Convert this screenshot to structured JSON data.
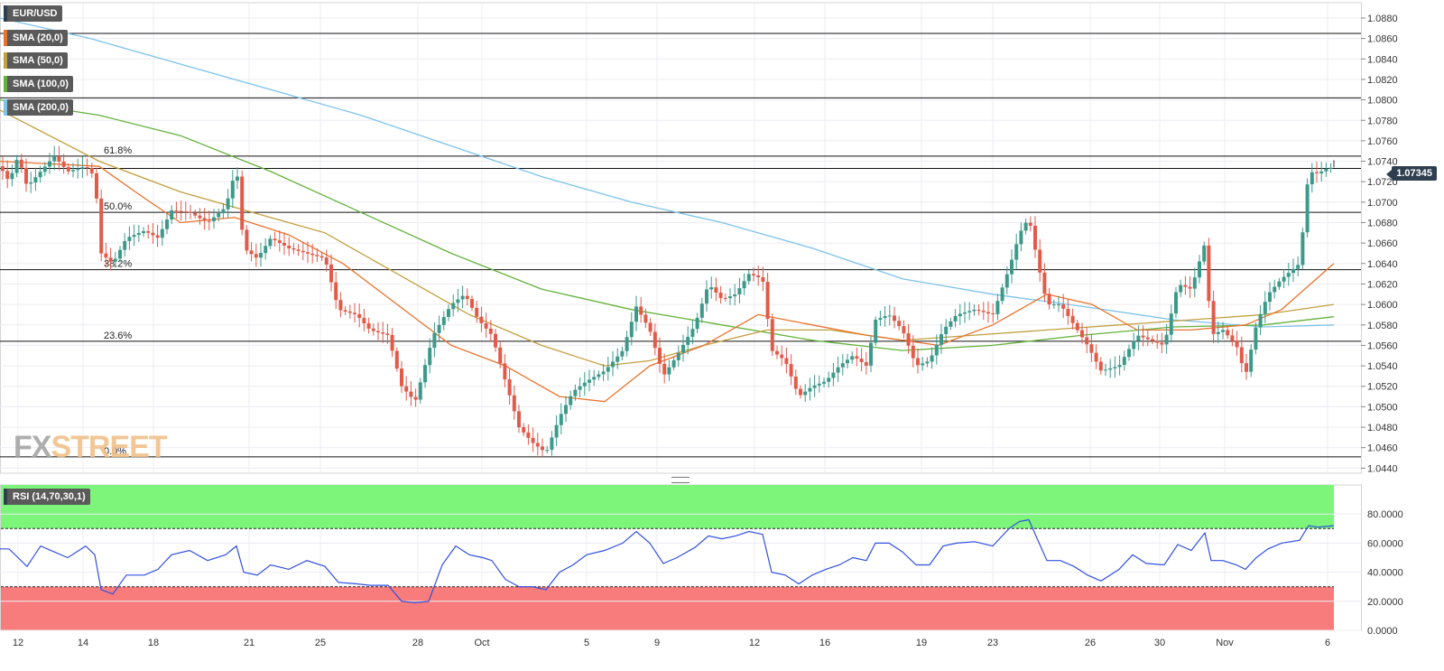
{
  "instrument": "EUR/USD",
  "indicators": [
    {
      "label": "SMA (20,0)",
      "color": "#e8732c"
    },
    {
      "label": "SMA (50,0)",
      "color": "#c2a040"
    },
    {
      "label": "SMA (100,0)",
      "color": "#63b23a"
    },
    {
      "label": "SMA (200,0)",
      "color": "#7cc3ea"
    }
  ],
  "rsi_label": "RSI (14,70,30,1)",
  "current_price": "1.07345",
  "watermark": {
    "fx": "FX",
    "street": "STREET"
  },
  "chart_data": [
    {
      "type": "candlestick",
      "title": "EUR/USD",
      "ylim": [
        1.0435,
        1.0895
      ],
      "y_ticks": [
        "1.0880",
        "1.0860",
        "1.0840",
        "1.0820",
        "1.0800",
        "1.0780",
        "1.0760",
        "1.0740",
        "1.0720",
        "1.0700",
        "1.0680",
        "1.0660",
        "1.0640",
        "1.0620",
        "1.0600",
        "1.0580",
        "1.0560",
        "1.0540",
        "1.0520",
        "1.0500",
        "1.0480",
        "1.0460",
        "1.0440"
      ],
      "x_tick_labels": [
        "12",
        "14",
        "18",
        "21",
        "25",
        "28",
        "Oct",
        "5",
        "9",
        "12",
        "16",
        "19",
        "23",
        "26",
        "30",
        "Nov",
        "6"
      ],
      "horizontal_levels": [
        {
          "label": "",
          "value": 1.0865
        },
        {
          "label": "",
          "value": 1.0802
        },
        {
          "label": "61.8%",
          "value": 1.0745
        },
        {
          "label": "",
          "value": 1.0733
        },
        {
          "label": "50.0%",
          "value": 1.069
        },
        {
          "label": "38.2%",
          "value": 1.0634
        },
        {
          "label": "23.6%",
          "value": 1.0564
        },
        {
          "label": "0.0%",
          "value": 1.0451
        }
      ],
      "price_path": [
        [
          0,
          1.0735
        ],
        [
          10,
          1.072
        ],
        [
          20,
          1.0745
        ],
        [
          30,
          1.0715
        ],
        [
          45,
          1.073
        ],
        [
          60,
          1.0745
        ],
        [
          75,
          1.073
        ],
        [
          95,
          1.0735
        ],
        [
          105,
          1.0725
        ],
        [
          112,
          1.065
        ],
        [
          125,
          1.064
        ],
        [
          140,
          1.0665
        ],
        [
          160,
          1.0672
        ],
        [
          175,
          1.0665
        ],
        [
          190,
          1.0692
        ],
        [
          210,
          1.069
        ],
        [
          230,
          1.068
        ],
        [
          250,
          1.0695
        ],
        [
          262,
          1.0735
        ],
        [
          270,
          1.0655
        ],
        [
          285,
          1.0645
        ],
        [
          300,
          1.0665
        ],
        [
          320,
          1.0655
        ],
        [
          340,
          1.065
        ],
        [
          360,
          1.0645
        ],
        [
          375,
          1.0595
        ],
        [
          395,
          1.059
        ],
        [
          410,
          1.0575
        ],
        [
          430,
          1.057
        ],
        [
          445,
          1.052
        ],
        [
          460,
          1.0505
        ],
        [
          480,
          1.057
        ],
        [
          500,
          1.06
        ],
        [
          515,
          1.061
        ],
        [
          530,
          1.0585
        ],
        [
          545,
          1.057
        ],
        [
          560,
          1.0525
        ],
        [
          575,
          1.048
        ],
        [
          590,
          1.0465
        ],
        [
          605,
          1.0455
        ],
        [
          620,
          1.049
        ],
        [
          635,
          1.0515
        ],
        [
          650,
          1.0525
        ],
        [
          670,
          1.0535
        ],
        [
          690,
          1.0555
        ],
        [
          705,
          1.0598
        ],
        [
          720,
          1.0575
        ],
        [
          735,
          1.053
        ],
        [
          750,
          1.055
        ],
        [
          770,
          1.058
        ],
        [
          785,
          1.062
        ],
        [
          800,
          1.0605
        ],
        [
          815,
          1.061
        ],
        [
          830,
          1.063
        ],
        [
          845,
          1.0625
        ],
        [
          855,
          1.0555
        ],
        [
          870,
          1.0545
        ],
        [
          885,
          1.051
        ],
        [
          900,
          1.052
        ],
        [
          915,
          1.0525
        ],
        [
          930,
          1.054
        ],
        [
          945,
          1.055
        ],
        [
          960,
          1.054
        ],
        [
          970,
          1.0585
        ],
        [
          985,
          1.059
        ],
        [
          1000,
          1.0575
        ],
        [
          1015,
          1.054
        ],
        [
          1030,
          1.0545
        ],
        [
          1045,
          1.0575
        ],
        [
          1060,
          1.059
        ],
        [
          1080,
          1.0595
        ],
        [
          1100,
          1.059
        ],
        [
          1118,
          1.0635
        ],
        [
          1130,
          1.067
        ],
        [
          1140,
          1.0685
        ],
        [
          1150,
          1.064
        ],
        [
          1160,
          1.06
        ],
        [
          1175,
          1.06
        ],
        [
          1190,
          1.058
        ],
        [
          1205,
          1.056
        ],
        [
          1220,
          1.0535
        ],
        [
          1240,
          1.054
        ],
        [
          1260,
          1.057
        ],
        [
          1275,
          1.0565
        ],
        [
          1290,
          1.056
        ],
        [
          1305,
          1.062
        ],
        [
          1320,
          1.0615
        ],
        [
          1335,
          1.066
        ],
        [
          1342,
          1.057
        ],
        [
          1355,
          1.0575
        ],
        [
          1370,
          1.056
        ],
        [
          1380,
          1.053
        ],
        [
          1392,
          1.058
        ],
        [
          1405,
          1.061
        ],
        [
          1420,
          1.0625
        ],
        [
          1440,
          1.064
        ],
        [
          1450,
          1.073
        ],
        [
          1460,
          1.0728
        ],
        [
          1470,
          1.0733
        ],
        [
          1478,
          1.0734
        ]
      ],
      "sma_20": [
        [
          0,
          1.074
        ],
        [
          110,
          1.0735
        ],
        [
          150,
          1.071
        ],
        [
          200,
          1.068
        ],
        [
          260,
          1.0685
        ],
        [
          320,
          1.0668
        ],
        [
          380,
          1.064
        ],
        [
          440,
          1.06
        ],
        [
          500,
          1.056
        ],
        [
          560,
          1.054
        ],
        [
          620,
          1.051
        ],
        [
          670,
          1.0505
        ],
        [
          720,
          1.054
        ],
        [
          780,
          1.056
        ],
        [
          840,
          1.059
        ],
        [
          900,
          1.058
        ],
        [
          960,
          1.057
        ],
        [
          1040,
          1.056
        ],
        [
          1100,
          1.058
        ],
        [
          1160,
          1.061
        ],
        [
          1210,
          1.06
        ],
        [
          1260,
          1.0575
        ],
        [
          1320,
          1.0575
        ],
        [
          1380,
          1.058
        ],
        [
          1420,
          1.0595
        ],
        [
          1478,
          1.064
        ]
      ],
      "sma_50": [
        [
          0,
          1.079
        ],
        [
          110,
          1.074
        ],
        [
          200,
          1.071
        ],
        [
          280,
          1.069
        ],
        [
          360,
          1.067
        ],
        [
          440,
          1.063
        ],
        [
          520,
          1.059
        ],
        [
          600,
          1.056
        ],
        [
          670,
          1.054
        ],
        [
          720,
          1.0545
        ],
        [
          780,
          1.056
        ],
        [
          850,
          1.0575
        ],
        [
          920,
          1.0575
        ],
        [
          1000,
          1.0565
        ],
        [
          1080,
          1.057
        ],
        [
          1160,
          1.0575
        ],
        [
          1240,
          1.058
        ],
        [
          1320,
          1.0585
        ],
        [
          1400,
          1.059
        ],
        [
          1478,
          1.06
        ]
      ],
      "sma_100": [
        [
          0,
          1.08
        ],
        [
          110,
          1.0785
        ],
        [
          200,
          1.0765
        ],
        [
          300,
          1.073
        ],
        [
          400,
          1.069
        ],
        [
          500,
          1.065
        ],
        [
          600,
          1.0615
        ],
        [
          700,
          1.0595
        ],
        [
          800,
          1.058
        ],
        [
          900,
          1.0565
        ],
        [
          1000,
          1.0555
        ],
        [
          1100,
          1.056
        ],
        [
          1200,
          1.057
        ],
        [
          1300,
          1.0578
        ],
        [
          1400,
          1.058
        ],
        [
          1478,
          1.0588
        ]
      ],
      "sma_200": [
        [
          0,
          1.088
        ],
        [
          100,
          1.086
        ],
        [
          200,
          1.0835
        ],
        [
          300,
          1.081
        ],
        [
          400,
          1.0785
        ],
        [
          500,
          1.0755
        ],
        [
          600,
          1.0725
        ],
        [
          700,
          1.07
        ],
        [
          800,
          1.068
        ],
        [
          900,
          1.0655
        ],
        [
          1000,
          1.0625
        ],
        [
          1100,
          1.061
        ],
        [
          1200,
          1.0598
        ],
        [
          1300,
          1.0585
        ],
        [
          1400,
          1.0578
        ],
        [
          1478,
          1.058
        ]
      ],
      "grid": true
    },
    {
      "type": "line",
      "title": "RSI (14,70,30,1)",
      "ylim": [
        0,
        100
      ],
      "y_ticks": [
        "80.0000",
        "60.0000",
        "40.0000",
        "20.0000",
        "0.0000"
      ],
      "overbought": 70,
      "oversold": 30,
      "rsi_path": [
        [
          0,
          56
        ],
        [
          10,
          56
        ],
        [
          20,
          50
        ],
        [
          30,
          44
        ],
        [
          45,
          58
        ],
        [
          60,
          54
        ],
        [
          75,
          50
        ],
        [
          95,
          58
        ],
        [
          105,
          52
        ],
        [
          112,
          28
        ],
        [
          125,
          25
        ],
        [
          140,
          38
        ],
        [
          160,
          38
        ],
        [
          175,
          42
        ],
        [
          190,
          52
        ],
        [
          210,
          55
        ],
        [
          230,
          48
        ],
        [
          250,
          52
        ],
        [
          262,
          58
        ],
        [
          270,
          40
        ],
        [
          285,
          38
        ],
        [
          300,
          45
        ],
        [
          320,
          42
        ],
        [
          340,
          48
        ],
        [
          360,
          44
        ],
        [
          375,
          33
        ],
        [
          395,
          32
        ],
        [
          410,
          31
        ],
        [
          430,
          31
        ],
        [
          445,
          20
        ],
        [
          460,
          19
        ],
        [
          475,
          20
        ],
        [
          490,
          45
        ],
        [
          505,
          58
        ],
        [
          520,
          52
        ],
        [
          535,
          50
        ],
        [
          545,
          48
        ],
        [
          560,
          35
        ],
        [
          575,
          30
        ],
        [
          590,
          30
        ],
        [
          605,
          28
        ],
        [
          620,
          40
        ],
        [
          635,
          45
        ],
        [
          650,
          52
        ],
        [
          670,
          55
        ],
        [
          690,
          60
        ],
        [
          705,
          68
        ],
        [
          720,
          60
        ],
        [
          735,
          46
        ],
        [
          750,
          50
        ],
        [
          770,
          57
        ],
        [
          785,
          65
        ],
        [
          800,
          63
        ],
        [
          815,
          65
        ],
        [
          830,
          68
        ],
        [
          845,
          66
        ],
        [
          855,
          40
        ],
        [
          870,
          38
        ],
        [
          885,
          32
        ],
        [
          900,
          38
        ],
        [
          915,
          42
        ],
        [
          930,
          45
        ],
        [
          945,
          50
        ],
        [
          960,
          48
        ],
        [
          970,
          60
        ],
        [
          985,
          60
        ],
        [
          1000,
          54
        ],
        [
          1015,
          45
        ],
        [
          1030,
          45
        ],
        [
          1045,
          58
        ],
        [
          1060,
          60
        ],
        [
          1080,
          61
        ],
        [
          1100,
          58
        ],
        [
          1118,
          70
        ],
        [
          1130,
          75
        ],
        [
          1140,
          76
        ],
        [
          1150,
          62
        ],
        [
          1160,
          48
        ],
        [
          1175,
          48
        ],
        [
          1190,
          44
        ],
        [
          1205,
          38
        ],
        [
          1220,
          34
        ],
        [
          1240,
          42
        ],
        [
          1255,
          52
        ],
        [
          1270,
          46
        ],
        [
          1290,
          45
        ],
        [
          1305,
          59
        ],
        [
          1320,
          55
        ],
        [
          1335,
          67
        ],
        [
          1342,
          48
        ],
        [
          1355,
          48
        ],
        [
          1370,
          45
        ],
        [
          1380,
          42
        ],
        [
          1392,
          50
        ],
        [
          1405,
          56
        ],
        [
          1420,
          60
        ],
        [
          1440,
          62
        ],
        [
          1450,
          72
        ],
        [
          1460,
          71
        ],
        [
          1478,
          72
        ]
      ],
      "grid": true
    }
  ]
}
